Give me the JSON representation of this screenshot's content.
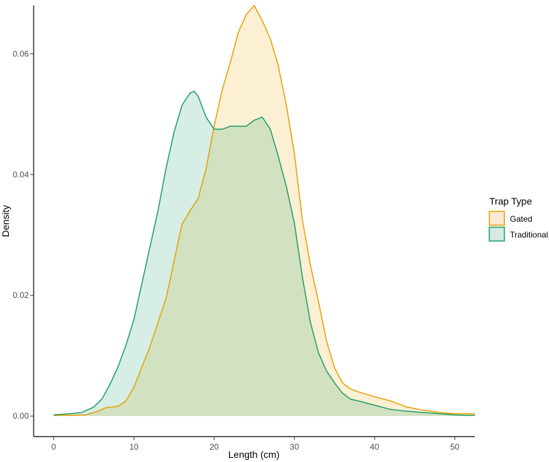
{
  "chart_data": {
    "type": "area",
    "title": "",
    "xlabel": "Length (cm)",
    "ylabel": "Density",
    "xlim": [
      -2.5,
      52.5
    ],
    "ylim": [
      -0.0034,
      0.068
    ],
    "x_ticks": [
      0,
      10,
      20,
      30,
      40,
      50
    ],
    "y_ticks": [
      0.0,
      0.02,
      0.04,
      0.06
    ],
    "y_tick_labels": [
      "0.00",
      "0.02",
      "0.04",
      "0.06"
    ],
    "grid": false,
    "legend": {
      "title": "Trap Type",
      "position": "right"
    },
    "series": [
      {
        "name": "Gated",
        "line_color": "#E69F00",
        "fill_color": "#FBE9D5",
        "x": [
          0,
          4,
          5.5,
          6.5,
          8,
          9,
          10,
          12,
          14,
          16,
          17,
          18,
          19,
          20,
          21,
          22,
          23,
          24,
          25,
          26,
          27,
          28,
          29,
          30,
          31,
          32,
          33,
          34,
          35,
          36,
          37,
          38,
          40,
          42,
          44,
          46,
          48,
          50,
          52.5
        ],
        "y": [
          0.0001,
          0.0002,
          0.0008,
          0.0014,
          0.0016,
          0.0025,
          0.0048,
          0.0115,
          0.0195,
          0.0318,
          0.034,
          0.036,
          0.041,
          0.048,
          0.054,
          0.0585,
          0.0635,
          0.0665,
          0.068,
          0.0655,
          0.0625,
          0.058,
          0.0515,
          0.0435,
          0.0325,
          0.025,
          0.019,
          0.0125,
          0.008,
          0.0055,
          0.0045,
          0.004,
          0.0032,
          0.0025,
          0.0015,
          0.001,
          0.0006,
          0.0004,
          0.0004
        ]
      },
      {
        "name": "Traditional",
        "line_color": "#1A9E68",
        "fill_color": "#D3EAE3",
        "x": [
          0,
          2,
          3.5,
          5,
          6,
          7,
          8,
          9,
          10,
          11,
          12,
          13,
          14,
          15,
          16,
          17,
          17.5,
          18,
          19,
          20,
          21,
          22,
          23,
          24,
          25,
          26,
          27,
          28,
          29,
          30,
          31,
          32,
          33,
          34,
          35,
          36,
          37,
          38,
          40,
          42,
          44,
          46,
          48,
          50,
          52.5
        ],
        "y": [
          0.0002,
          0.0004,
          0.0006,
          0.0015,
          0.0028,
          0.0052,
          0.0081,
          0.0117,
          0.016,
          0.022,
          0.028,
          0.034,
          0.041,
          0.047,
          0.0515,
          0.0535,
          0.0538,
          0.053,
          0.0495,
          0.0475,
          0.0475,
          0.048,
          0.048,
          0.048,
          0.049,
          0.0495,
          0.0475,
          0.043,
          0.038,
          0.032,
          0.023,
          0.0155,
          0.0105,
          0.0075,
          0.0055,
          0.0038,
          0.0028,
          0.0025,
          0.0018,
          0.0011,
          0.0008,
          0.0006,
          0.0004,
          0.0002,
          0.0001
        ]
      }
    ]
  }
}
